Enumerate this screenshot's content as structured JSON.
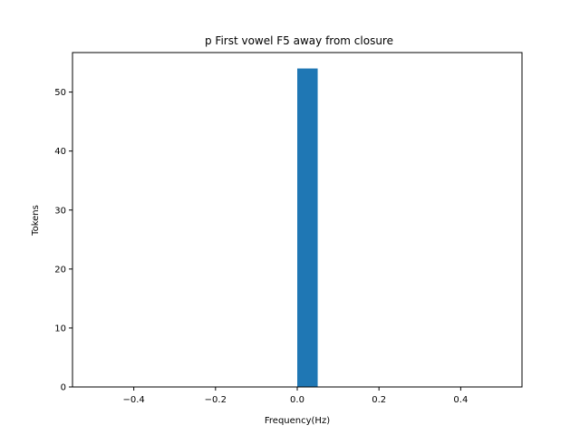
{
  "chart_data": {
    "type": "bar",
    "title": "p First vowel F5 away from closure",
    "xlabel": "Frequency(Hz)",
    "ylabel": "Tokens",
    "xlim": [
      -0.55,
      0.55
    ],
    "ylim": [
      0,
      56.7
    ],
    "x_ticks": [
      -0.4,
      -0.2,
      0.0,
      0.2,
      0.4
    ],
    "x_tick_labels": [
      "−0.4",
      "−0.2",
      "0.0",
      "0.2",
      "0.4"
    ],
    "y_ticks": [
      0,
      10,
      20,
      30,
      40,
      50
    ],
    "y_tick_labels": [
      "0",
      "10",
      "20",
      "30",
      "40",
      "50"
    ],
    "bins": [
      {
        "start": 0.0,
        "end": 0.05,
        "value": 54
      }
    ],
    "bar_color": "#1f77b4",
    "grid": false,
    "legend": "none"
  }
}
